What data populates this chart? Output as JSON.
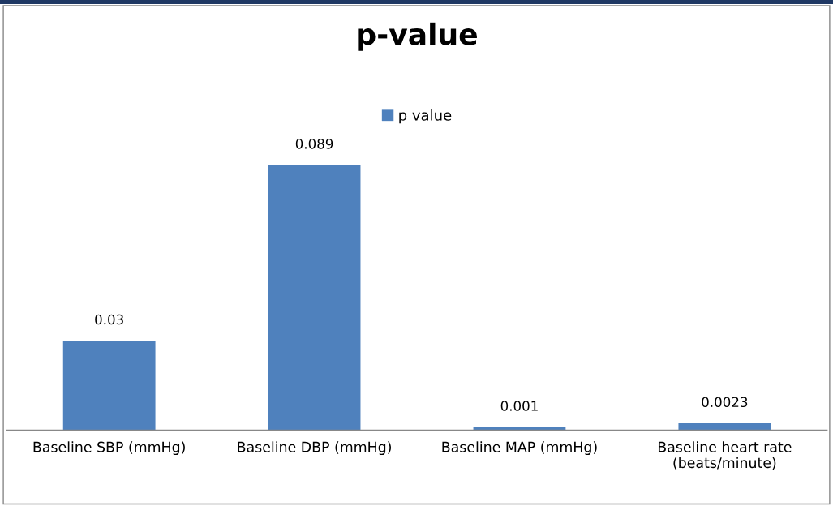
{
  "chart_data": {
    "type": "bar",
    "title": "p-value",
    "categories": [
      "Baseline SBP (mmHg)",
      "Baseline DBP (mmHg)",
      "Baseline MAP (mmHg)",
      "Baseline heart rate\n(beats/minute)"
    ],
    "series": [
      {
        "name": "p value",
        "color": "#4f81bd",
        "values": [
          0.03,
          0.089,
          0.001,
          0.0023
        ]
      }
    ],
    "data_labels": true,
    "legend": "top",
    "grid": false,
    "tick_labels": "x"
  }
}
